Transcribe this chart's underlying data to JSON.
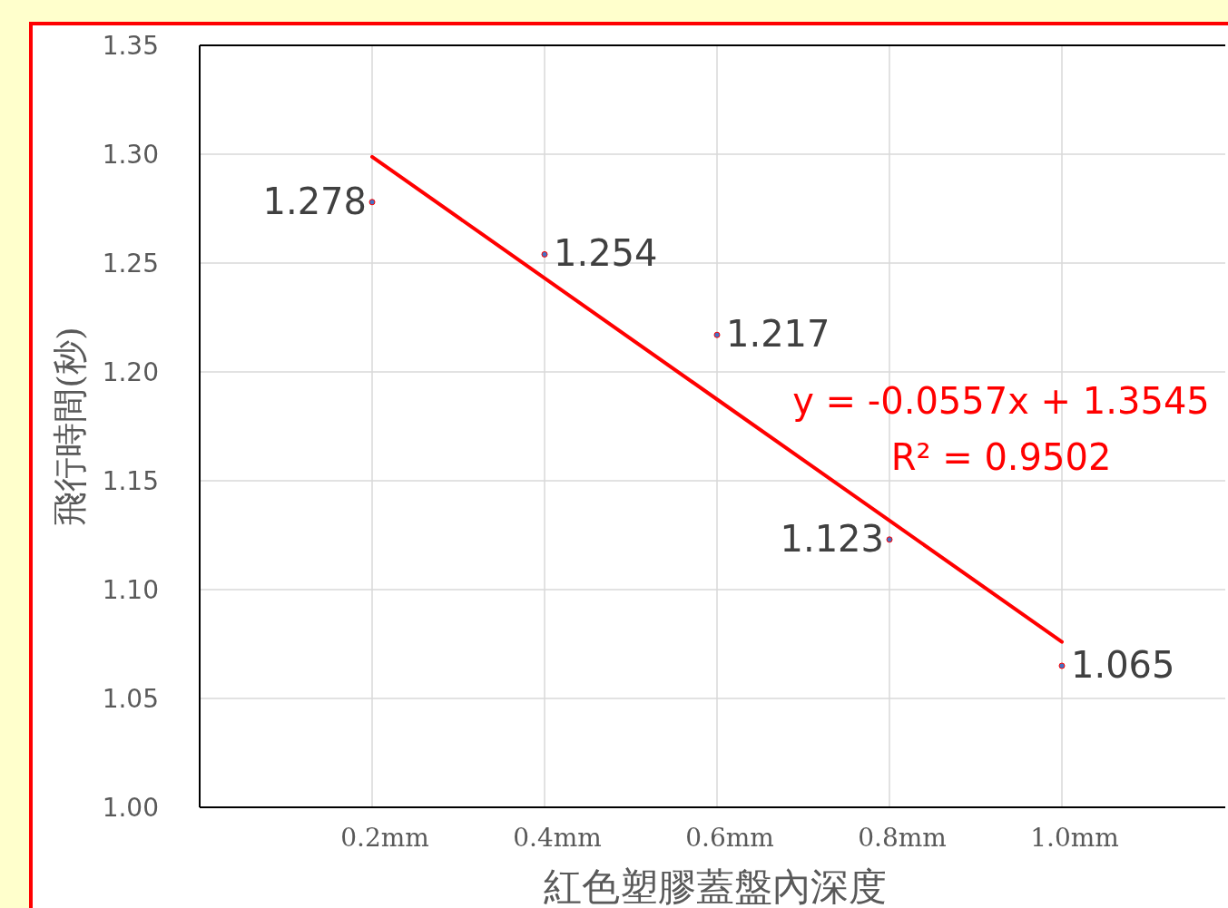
{
  "chart_data": {
    "type": "scatter",
    "xlabel": "紅色塑膠蓋盤內深度",
    "ylabel": "飛行時間(秒)",
    "categories": [
      "0.2mm",
      "0.4mm",
      "0.6mm",
      "0.8mm",
      "1.0mm"
    ],
    "series": [
      {
        "color": "#4472c4",
        "marker": "circle",
        "values": [
          1.278,
          1.254,
          1.217,
          1.123,
          1.065
        ],
        "value_labels": [
          "1.278",
          "1.254",
          "1.217",
          "1.123",
          "1.065"
        ]
      },
      {
        "type": "line",
        "color": "#ff0000",
        "line_style": "solid",
        "values": [
          1.2988,
          1.2431,
          1.1874,
          1.1317,
          1.076
        ]
      }
    ],
    "annotations": [
      "y = -0.0557x + 1.3545",
      "R² = 0.9502"
    ],
    "ylim": [
      1.0,
      1.35
    ],
    "yticks": [
      {
        "value": 1.0,
        "label": "1.00"
      },
      {
        "value": 1.05,
        "label": "1.05"
      },
      {
        "value": 1.1,
        "label": "1.10"
      },
      {
        "value": 1.15,
        "label": "1.15"
      },
      {
        "value": 1.2,
        "label": "1.20"
      },
      {
        "value": 1.25,
        "label": "1.25"
      },
      {
        "value": 1.3,
        "label": "1.30"
      },
      {
        "value": 1.35,
        "label": "1.35"
      }
    ],
    "grid": true
  }
}
